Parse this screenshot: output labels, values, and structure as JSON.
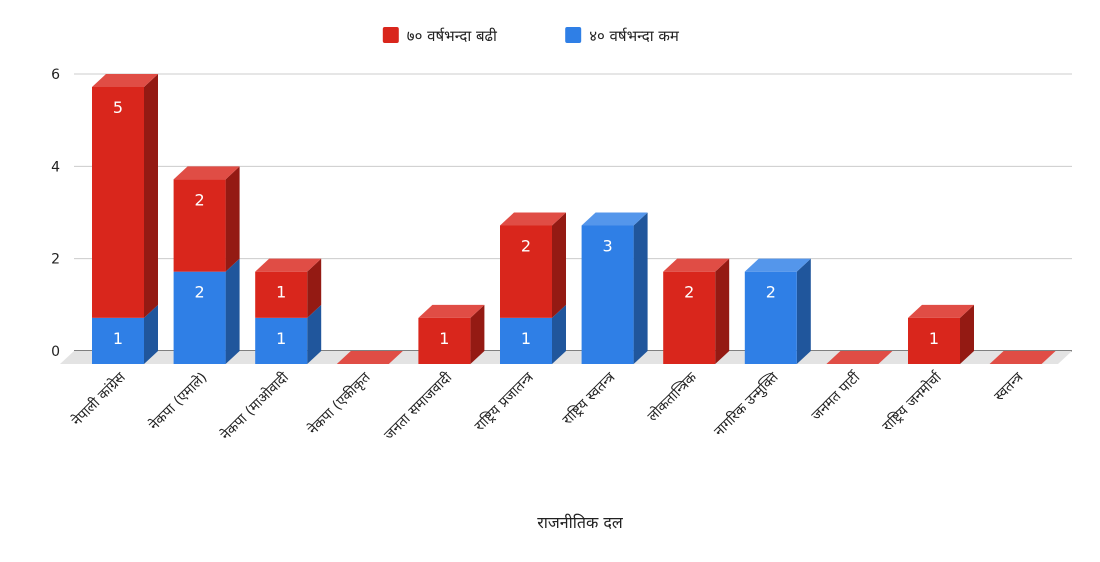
{
  "chart_data": {
    "type": "bar",
    "stacked": true,
    "three_d": true,
    "xlabel": "राजनीतिक दल",
    "ylabel": "",
    "ylim": [
      0,
      6
    ],
    "yticks": [
      0,
      2,
      4,
      6
    ],
    "grid": true,
    "legend_position": "top",
    "categories": [
      "नेपाली कांग्रेस",
      "नेकपा (एमाले)",
      "नेकपा (माओवादी",
      "नेकपा (एकीकृत",
      "जनता समाजवादी",
      "राष्ट्रिय प्रजातन्त्र",
      "राष्ट्रिय स्वतन्त्र",
      "लोकतान्त्रिक",
      "नागरिक उन्मुक्ति",
      "जनमत पार्टी",
      "राष्ट्रिय जनमोर्चा",
      "स्वतन्त्र"
    ],
    "series": [
      {
        "name": "४० वर्षभन्दा कम",
        "color": "#2f7fe6",
        "values": [
          1,
          2,
          1,
          0,
          0,
          1,
          3,
          0,
          2,
          0,
          0,
          0
        ]
      },
      {
        "name": "७० वर्षभन्दा बढी",
        "color": "#d9261c",
        "values": [
          5,
          2,
          1,
          0,
          1,
          2,
          0,
          2,
          0,
          0,
          1,
          0
        ]
      }
    ]
  }
}
